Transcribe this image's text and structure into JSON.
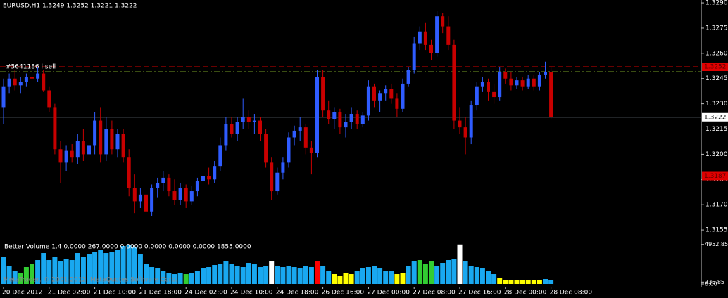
{
  "chart_data": [
    {
      "type": "candlestick",
      "title": "EURUSD,H1  1.3249 1.3252 1.3221 1.3222",
      "up_color": "#2f5cff",
      "down_color": "#c80000",
      "ylim": [
        1.31496,
        1.32917
      ],
      "yticks": [
        {
          "value": 1.329,
          "label": "1.3290"
        },
        1.3275,
        {
          "value": 1.326,
          "label": "1.3260"
        },
        1.3245,
        {
          "value": 1.323,
          "label": "1.3230"
        },
        1.3215,
        {
          "value": 1.32,
          "label": "1.3200"
        },
        1.3185,
        {
          "value": 1.317,
          "label": "1.3170"
        },
        1.3155
      ],
      "categories": [
        "20 Dec 2012",
        null,
        null,
        null,
        null,
        null,
        null,
        null,
        "21 Dec 02:00",
        null,
        null,
        null,
        null,
        null,
        null,
        null,
        "21 Dec 10:00",
        null,
        null,
        null,
        null,
        null,
        null,
        null,
        "21 Dec 18:00",
        null,
        null,
        null,
        null,
        null,
        null,
        null,
        "24 Dec 02:00",
        null,
        null,
        null,
        null,
        null,
        null,
        null,
        "24 Dec 10:00",
        null,
        null,
        null,
        null,
        null,
        null,
        null,
        "24 Dec 18:00",
        null,
        null,
        null,
        null,
        null,
        null,
        null,
        "26 Dec 16:00",
        null,
        null,
        null,
        null,
        null,
        null,
        null,
        "27 Dec 00:00",
        null,
        null,
        null,
        null,
        null,
        null,
        null,
        "27 Dec 08:00",
        null,
        null,
        null,
        null,
        null,
        null,
        null,
        "27 Dec 16:00",
        null,
        null,
        null,
        null,
        null,
        null,
        null,
        "28 Dec 00:00",
        null,
        null,
        null,
        null,
        null,
        null,
        null,
        "28 Dec 08:00"
      ],
      "ohlc": [
        [
          1.3228,
          1.3245,
          1.3218,
          1.324
        ],
        [
          1.324,
          1.3248,
          1.3236,
          1.3245
        ],
        [
          1.3245,
          1.325,
          1.3238,
          1.3241
        ],
        [
          1.3241,
          1.3246,
          1.3236,
          1.3243
        ],
        [
          1.3243,
          1.3248,
          1.324,
          1.3246
        ],
        [
          1.3246,
          1.325,
          1.3242,
          1.3245
        ],
        [
          1.3245,
          1.3252,
          1.3243,
          1.3248
        ],
        [
          1.3248,
          1.325,
          1.3237,
          1.3238
        ],
        [
          1.3238,
          1.324,
          1.3225,
          1.3228
        ],
        [
          1.3228,
          1.323,
          1.32,
          1.3203
        ],
        [
          1.3203,
          1.3208,
          1.3183,
          1.3195
        ],
        [
          1.3195,
          1.3205,
          1.319,
          1.3202
        ],
        [
          1.3202,
          1.3206,
          1.3195,
          1.3198
        ],
        [
          1.3198,
          1.3212,
          1.3194,
          1.3208
        ],
        [
          1.3208,
          1.3215,
          1.3196,
          1.32
        ],
        [
          1.32,
          1.321,
          1.3192,
          1.3205
        ],
        [
          1.3205,
          1.3225,
          1.32,
          1.322
        ],
        [
          1.322,
          1.3228,
          1.3195,
          1.32
        ],
        [
          1.32,
          1.3222,
          1.3196,
          1.3215
        ],
        [
          1.3215,
          1.322,
          1.32,
          1.3203
        ],
        [
          1.3203,
          1.3215,
          1.3198,
          1.3212
        ],
        [
          1.3212,
          1.3215,
          1.3195,
          1.3198
        ],
        [
          1.3198,
          1.3203,
          1.3175,
          1.318
        ],
        [
          1.318,
          1.3188,
          1.3165,
          1.3172
        ],
        [
          1.3172,
          1.318,
          1.3168,
          1.3176
        ],
        [
          1.3176,
          1.3178,
          1.3158,
          1.3166
        ],
        [
          1.3166,
          1.3182,
          1.3163,
          1.318
        ],
        [
          1.318,
          1.3186,
          1.3174,
          1.3183
        ],
        [
          1.3183,
          1.319,
          1.3178,
          1.3186
        ],
        [
          1.3186,
          1.3188,
          1.3175,
          1.3178
        ],
        [
          1.3178,
          1.3185,
          1.317,
          1.3173
        ],
        [
          1.3173,
          1.3183,
          1.317,
          1.318
        ],
        [
          1.318,
          1.3182,
          1.3168,
          1.3172
        ],
        [
          1.3172,
          1.3181,
          1.317,
          1.3178
        ],
        [
          1.3178,
          1.3186,
          1.3175,
          1.3184
        ],
        [
          1.3184,
          1.319,
          1.318,
          1.3187
        ],
        [
          1.3187,
          1.3192,
          1.3182,
          1.3185
        ],
        [
          1.3185,
          1.3196,
          1.3183,
          1.3193
        ],
        [
          1.3193,
          1.321,
          1.319,
          1.3205
        ],
        [
          1.3205,
          1.3222,
          1.3202,
          1.3218
        ],
        [
          1.3218,
          1.3222,
          1.321,
          1.3212
        ],
        [
          1.3212,
          1.3222,
          1.3208,
          1.3219
        ],
        [
          1.3219,
          1.3233,
          1.3215,
          1.3222
        ],
        [
          1.3222,
          1.3226,
          1.3215,
          1.3219
        ],
        [
          1.3219,
          1.3224,
          1.3212,
          1.322
        ],
        [
          1.322,
          1.3222,
          1.3208,
          1.3212
        ],
        [
          1.3212,
          1.3215,
          1.3192,
          1.3195
        ],
        [
          1.3195,
          1.3198,
          1.3173,
          1.3178
        ],
        [
          1.3178,
          1.3192,
          1.3176,
          1.3189
        ],
        [
          1.3189,
          1.3198,
          1.3185,
          1.3195
        ],
        [
          1.3195,
          1.3213,
          1.3192,
          1.321
        ],
        [
          1.321,
          1.3217,
          1.3205,
          1.3214
        ],
        [
          1.3214,
          1.3222,
          1.3208,
          1.3216
        ],
        [
          1.3216,
          1.3218,
          1.32,
          1.3204
        ],
        [
          1.3204,
          1.3208,
          1.3188,
          1.3201
        ],
        [
          1.3201,
          1.325,
          1.3198,
          1.3246
        ],
        [
          1.3246,
          1.325,
          1.3222,
          1.3226
        ],
        [
          1.3226,
          1.3232,
          1.3218,
          1.3221
        ],
        [
          1.3221,
          1.3228,
          1.3215,
          1.3225
        ],
        [
          1.3225,
          1.3227,
          1.3212,
          1.3216
        ],
        [
          1.3216,
          1.3224,
          1.321,
          1.3219
        ],
        [
          1.3219,
          1.3228,
          1.3215,
          1.3224
        ],
        [
          1.3224,
          1.3226,
          1.3215,
          1.3218
        ],
        [
          1.3218,
          1.3225,
          1.3216,
          1.3223
        ],
        [
          1.3223,
          1.3244,
          1.322,
          1.324
        ],
        [
          1.324,
          1.3242,
          1.3228,
          1.3232
        ],
        [
          1.3232,
          1.3238,
          1.3225,
          1.3236
        ],
        [
          1.3236,
          1.3241,
          1.3232,
          1.3239
        ],
        [
          1.3239,
          1.3242,
          1.323,
          1.3233
        ],
        [
          1.3233,
          1.3236,
          1.3222,
          1.3227
        ],
        [
          1.3227,
          1.3245,
          1.3225,
          1.3242
        ],
        [
          1.3242,
          1.3252,
          1.324,
          1.325
        ],
        [
          1.325,
          1.327,
          1.3248,
          1.3266
        ],
        [
          1.3266,
          1.3276,
          1.3262,
          1.3273
        ],
        [
          1.3273,
          1.3278,
          1.3262,
          1.3265
        ],
        [
          1.3265,
          1.3268,
          1.3256,
          1.326
        ],
        [
          1.326,
          1.3285,
          1.3258,
          1.3282
        ],
        [
          1.3282,
          1.3284,
          1.3272,
          1.3276
        ],
        [
          1.3276,
          1.3282,
          1.3262,
          1.3265
        ],
        [
          1.3265,
          1.3268,
          1.3215,
          1.322
        ],
        [
          1.322,
          1.3228,
          1.3212,
          1.3216
        ],
        [
          1.3216,
          1.3222,
          1.32,
          1.321
        ],
        [
          1.321,
          1.3232,
          1.3206,
          1.3229
        ],
        [
          1.3229,
          1.3243,
          1.3226,
          1.324
        ],
        [
          1.324,
          1.3246,
          1.3237,
          1.3243
        ],
        [
          1.3243,
          1.3245,
          1.3232,
          1.3237
        ],
        [
          1.3237,
          1.3242,
          1.323,
          1.3234
        ],
        [
          1.3234,
          1.3252,
          1.3232,
          1.3249
        ],
        [
          1.3249,
          1.3251,
          1.3242,
          1.3245
        ],
        [
          1.3245,
          1.3249,
          1.3238,
          1.3241
        ],
        [
          1.3241,
          1.3246,
          1.3239,
          1.3244
        ],
        [
          1.3244,
          1.3246,
          1.3238,
          1.324
        ],
        [
          1.324,
          1.3247,
          1.3239,
          1.3245
        ],
        [
          1.3245,
          1.3247,
          1.3238,
          1.324
        ],
        [
          1.324,
          1.3249,
          1.3238,
          1.3247
        ],
        [
          1.3247,
          1.3255,
          1.3245,
          1.3249
        ],
        [
          1.3249,
          1.3252,
          1.3221,
          1.3222
        ]
      ],
      "levels": [
        {
          "value": 1.3252,
          "color": "#d00000",
          "style": "dash",
          "box_color": "#e00000",
          "box_text_color": "#600000"
        },
        {
          "value": 1.3249,
          "color": "#9acd32",
          "style": "dashdot",
          "text": "#5641186 l sell"
        },
        {
          "value": 1.3222,
          "color": "#7f8c9a",
          "style": "solid",
          "box_color": "#ffffff",
          "box_text_color": "#000000"
        },
        {
          "value": 1.3187,
          "color": "#d00000",
          "style": "dash",
          "box_color": "#e00000",
          "box_text_color": "#600000"
        }
      ],
      "watermark": "MetaTrader, © 2001-2012, MetaQuotes Software Corp."
    },
    {
      "type": "bar",
      "title": "Better Volume 1.4 0.0000 267.0000 0.0000 0.0000 0.0000 0.0000 1855.0000",
      "ylim": [
        0,
        5370
      ],
      "yticks": [
        4952.85,
        235.85,
        {
          "value": 0,
          "label": "0.00"
        }
      ],
      "values": [
        3432,
        2288,
        1672,
        1408,
        2112,
        2552,
        2992,
        3872,
        2992,
        3432,
        2816,
        3168,
        2992,
        3872,
        3432,
        3696,
        4048,
        4312,
        3872,
        4048,
        4312,
        4752,
        4928,
        4576,
        3696,
        2552,
        2112,
        1936,
        1672,
        1408,
        1232,
        1408,
        1232,
        1408,
        1672,
        1936,
        2112,
        2376,
        2552,
        2816,
        2552,
        2288,
        2112,
        2640,
        2464,
        2112,
        2288,
        2816,
        2288,
        2112,
        2288,
        2112,
        1936,
        2288,
        2112,
        2816,
        2288,
        1672,
        1232,
        1056,
        1408,
        1232,
        1672,
        1936,
        2112,
        2288,
        1936,
        1672,
        1584,
        1232,
        1408,
        2288,
        2816,
        2992,
        2552,
        2816,
        2288,
        2640,
        2992,
        3168,
        4950,
        2816,
        2288,
        2112,
        1936,
        1672,
        1232,
        792,
        528,
        528,
        440,
        440,
        528,
        528,
        528,
        616,
        528
      ],
      "colors": [
        "#19a8f0",
        "#19a8f0",
        "#19a8f0",
        "#32cd32",
        "#32cd32",
        "#32cd32",
        "#19a8f0",
        "#19a8f0",
        "#19a8f0",
        "#19a8f0",
        "#19a8f0",
        "#19a8f0",
        "#19a8f0",
        "#19a8f0",
        "#19a8f0",
        "#19a8f0",
        "#19a8f0",
        "#19a8f0",
        "#19a8f0",
        "#19a8f0",
        "#19a8f0",
        "#19a8f0",
        "#19a8f0",
        "#19a8f0",
        "#19a8f0",
        "#19a8f0",
        "#19a8f0",
        "#19a8f0",
        "#19a8f0",
        "#19a8f0",
        "#19a8f0",
        "#19a8f0",
        "#32cd32",
        "#19a8f0",
        "#19a8f0",
        "#19a8f0",
        "#19a8f0",
        "#19a8f0",
        "#19a8f0",
        "#19a8f0",
        "#19a8f0",
        "#19a8f0",
        "#19a8f0",
        "#19a8f0",
        "#19a8f0",
        "#19a8f0",
        "#19a8f0",
        "#ffffff",
        "#19a8f0",
        "#19a8f0",
        "#19a8f0",
        "#19a8f0",
        "#19a8f0",
        "#19a8f0",
        "#19a8f0",
        "#ff0000",
        "#19a8f0",
        "#19a8f0",
        "#ffff00",
        "#ffff00",
        "#ffff00",
        "#ffff00",
        "#19a8f0",
        "#19a8f0",
        "#19a8f0",
        "#19a8f0",
        "#19a8f0",
        "#19a8f0",
        "#19a8f0",
        "#ffff00",
        "#ffff00",
        "#19a8f0",
        "#19a8f0",
        "#32cd32",
        "#32cd32",
        "#32cd32",
        "#19a8f0",
        "#19a8f0",
        "#19a8f0",
        "#19a8f0",
        "#ffffff",
        "#19a8f0",
        "#19a8f0",
        "#19a8f0",
        "#19a8f0",
        "#19a8f0",
        "#19a8f0",
        "#ffff00",
        "#ffff00",
        "#ffff00",
        "#ffff00",
        "#ffff00",
        "#ffff00",
        "#ffff00",
        "#ffff00",
        "#19a8f0",
        "#19a8f0"
      ]
    }
  ]
}
